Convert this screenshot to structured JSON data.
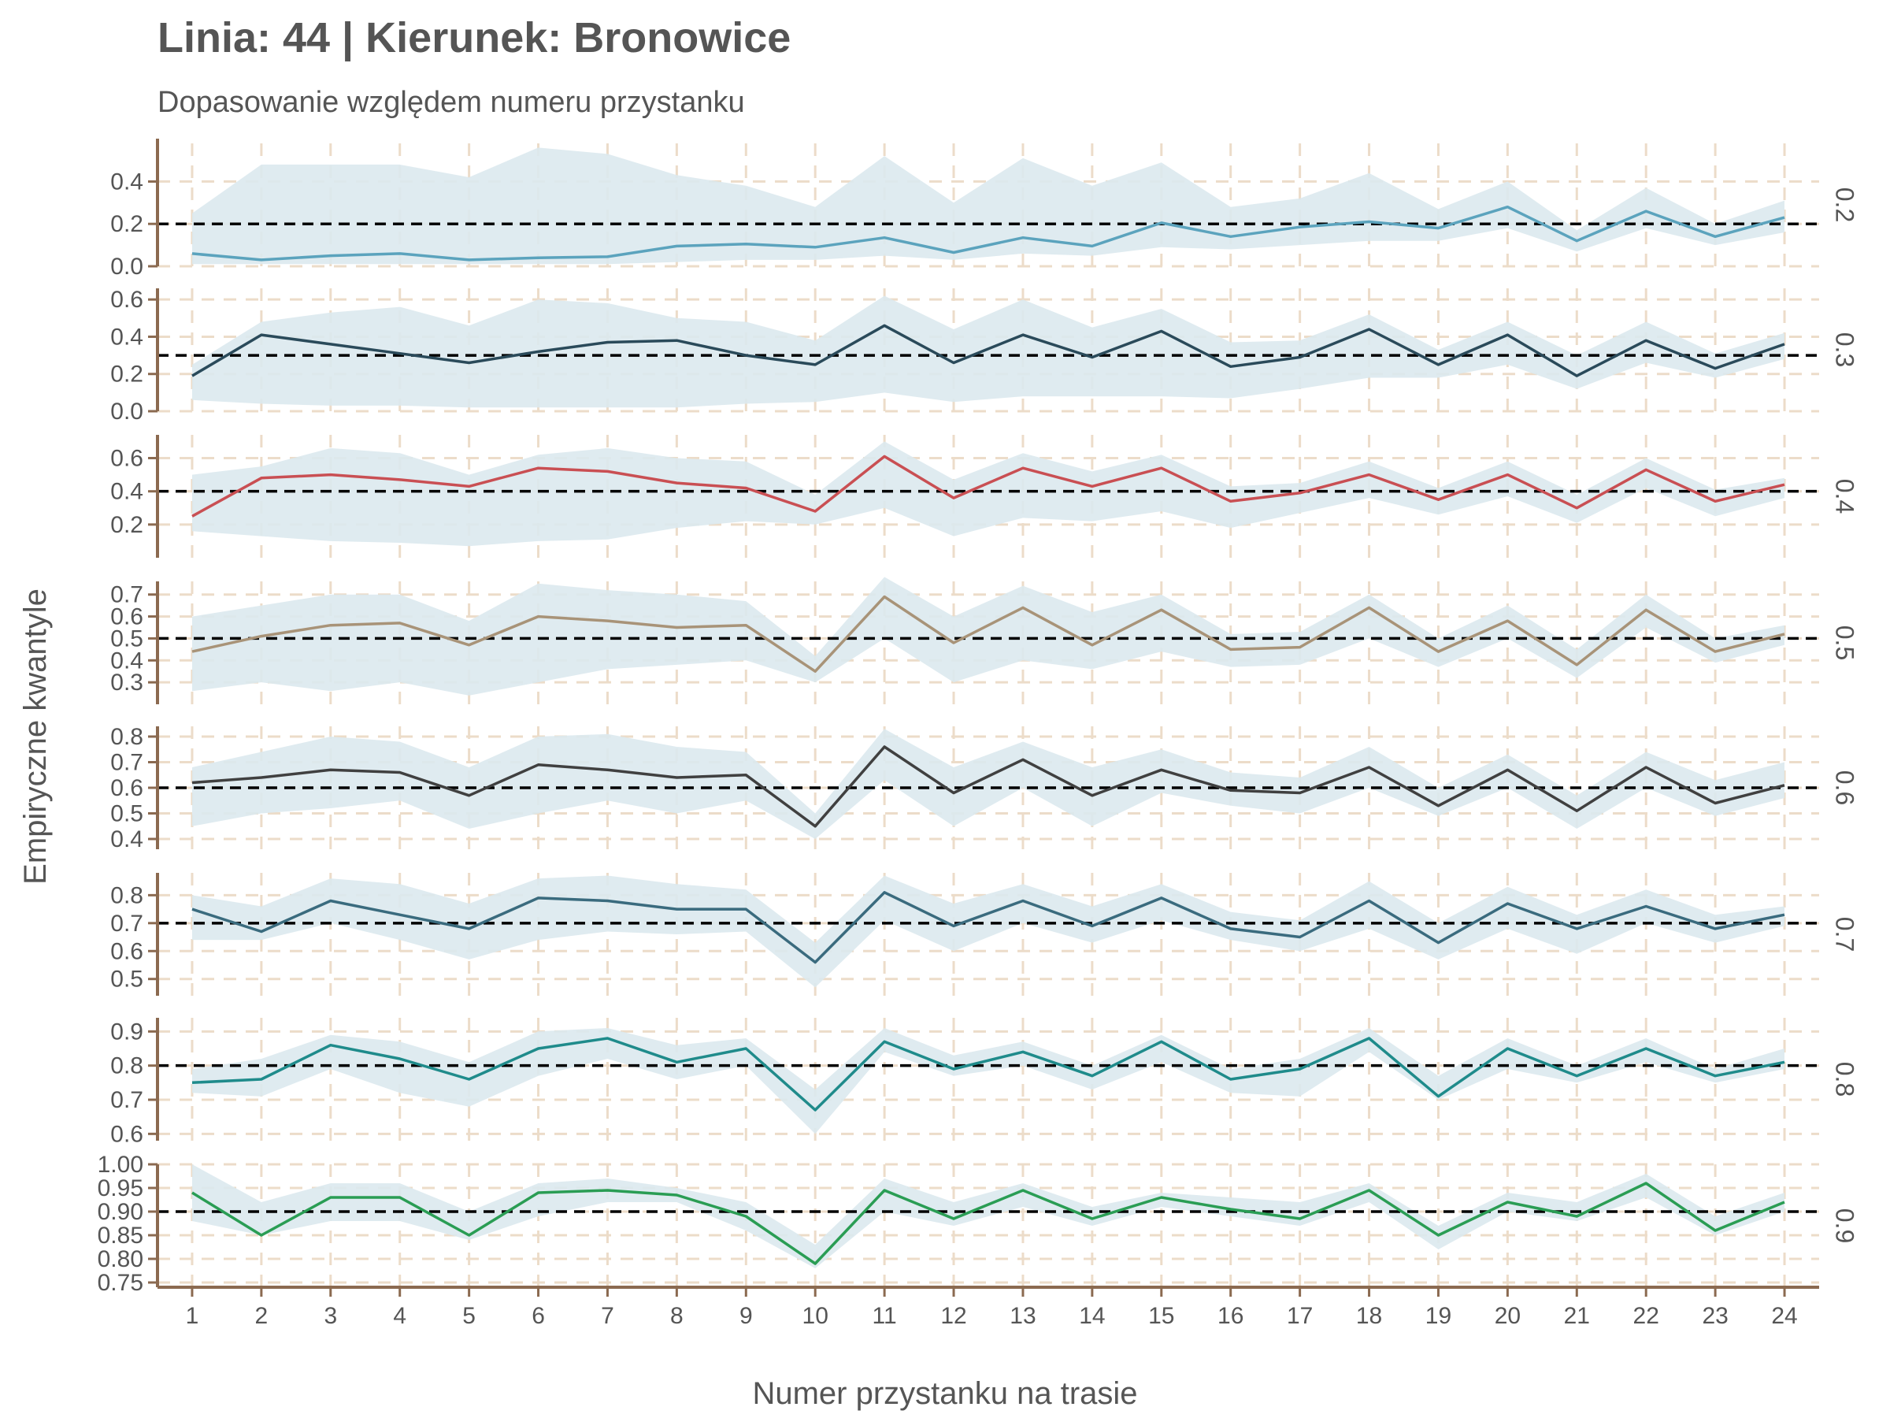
{
  "chart_data": {
    "type": "line",
    "title": "Linia: 44 | Kierunek: Bronowice",
    "subtitle": "Dopasowanie względem numeru przystanku",
    "xlabel": "Numer przystanku na trasie",
    "ylabel": "Empiryczne kwantyle",
    "x": [
      1,
      2,
      3,
      4,
      5,
      6,
      7,
      8,
      9,
      10,
      11,
      12,
      13,
      14,
      15,
      16,
      17,
      18,
      19,
      20,
      21,
      22,
      23,
      24
    ],
    "xlim": [
      0.5,
      24.5
    ],
    "grid": true,
    "panels": [
      {
        "strip": "0.2",
        "reference": 0.2,
        "color": "#5ba3bd",
        "ylim": [
          0.0,
          0.58
        ],
        "yticks": [
          0.0,
          0.2,
          0.4
        ],
        "tick_labels": [
          "0.0",
          "0.2",
          "0.4"
        ],
        "values": [
          0.06,
          0.03,
          0.05,
          0.06,
          0.03,
          0.04,
          0.045,
          0.095,
          0.105,
          0.09,
          0.135,
          0.065,
          0.135,
          0.095,
          0.205,
          0.14,
          0.185,
          0.21,
          0.18,
          0.28,
          0.12,
          0.26,
          0.14,
          0.23
        ],
        "lower": [
          0.01,
          0.01,
          0.01,
          0.01,
          0.01,
          0.01,
          0.01,
          0.02,
          0.03,
          0.03,
          0.05,
          0.03,
          0.06,
          0.05,
          0.09,
          0.08,
          0.1,
          0.12,
          0.12,
          0.18,
          0.07,
          0.18,
          0.1,
          0.16
        ],
        "upper": [
          0.25,
          0.48,
          0.48,
          0.48,
          0.42,
          0.56,
          0.53,
          0.43,
          0.38,
          0.28,
          0.52,
          0.3,
          0.51,
          0.38,
          0.49,
          0.28,
          0.32,
          0.44,
          0.27,
          0.4,
          0.17,
          0.37,
          0.2,
          0.31
        ]
      },
      {
        "strip": "0.3",
        "reference": 0.3,
        "color": "#2a4a5a",
        "ylim": [
          0.0,
          0.66
        ],
        "yticks": [
          0.0,
          0.2,
          0.4,
          0.6
        ],
        "tick_labels": [
          "0.0",
          "0.2",
          "0.4",
          "0.6"
        ],
        "values": [
          0.19,
          0.41,
          0.36,
          0.31,
          0.26,
          0.32,
          0.37,
          0.38,
          0.3,
          0.25,
          0.46,
          0.26,
          0.41,
          0.29,
          0.43,
          0.24,
          0.29,
          0.44,
          0.25,
          0.41,
          0.19,
          0.38,
          0.23,
          0.36
        ],
        "lower": [
          0.06,
          0.04,
          0.03,
          0.03,
          0.02,
          0.02,
          0.02,
          0.02,
          0.04,
          0.05,
          0.1,
          0.05,
          0.08,
          0.08,
          0.08,
          0.07,
          0.12,
          0.18,
          0.18,
          0.25,
          0.12,
          0.26,
          0.18,
          0.28
        ],
        "upper": [
          0.25,
          0.48,
          0.53,
          0.56,
          0.46,
          0.6,
          0.58,
          0.5,
          0.48,
          0.38,
          0.62,
          0.44,
          0.6,
          0.45,
          0.55,
          0.37,
          0.38,
          0.52,
          0.33,
          0.48,
          0.3,
          0.48,
          0.31,
          0.42
        ]
      },
      {
        "strip": "0.4",
        "reference": 0.4,
        "color": "#c94f53",
        "ylim": [
          0.0,
          0.74
        ],
        "yticks": [
          0.2,
          0.4,
          0.6
        ],
        "tick_labels": [
          "0.2",
          "0.4",
          "0.6"
        ],
        "values": [
          0.25,
          0.48,
          0.5,
          0.47,
          0.43,
          0.54,
          0.52,
          0.45,
          0.42,
          0.28,
          0.61,
          0.36,
          0.54,
          0.43,
          0.54,
          0.34,
          0.39,
          0.5,
          0.35,
          0.5,
          0.3,
          0.53,
          0.34,
          0.44
        ],
        "lower": [
          0.16,
          0.13,
          0.1,
          0.09,
          0.07,
          0.1,
          0.11,
          0.18,
          0.22,
          0.2,
          0.3,
          0.13,
          0.24,
          0.22,
          0.28,
          0.18,
          0.27,
          0.36,
          0.26,
          0.37,
          0.21,
          0.42,
          0.25,
          0.36
        ],
        "upper": [
          0.5,
          0.55,
          0.66,
          0.63,
          0.5,
          0.62,
          0.66,
          0.6,
          0.58,
          0.38,
          0.7,
          0.47,
          0.63,
          0.52,
          0.62,
          0.43,
          0.45,
          0.58,
          0.42,
          0.58,
          0.38,
          0.6,
          0.41,
          0.48
        ]
      },
      {
        "strip": "0.5",
        "reference": 0.5,
        "color": "#a89378",
        "ylim": [
          0.2,
          0.76
        ],
        "yticks": [
          0.3,
          0.4,
          0.5,
          0.6,
          0.7
        ],
        "tick_labels": [
          "0.3",
          "0.4",
          "0.5",
          "0.6",
          "0.7"
        ],
        "values": [
          0.44,
          0.51,
          0.56,
          0.57,
          0.47,
          0.6,
          0.58,
          0.55,
          0.56,
          0.35,
          0.69,
          0.48,
          0.64,
          0.47,
          0.63,
          0.45,
          0.46,
          0.64,
          0.44,
          0.58,
          0.38,
          0.63,
          0.44,
          0.52
        ],
        "lower": [
          0.26,
          0.3,
          0.26,
          0.3,
          0.24,
          0.3,
          0.36,
          0.38,
          0.4,
          0.3,
          0.5,
          0.3,
          0.4,
          0.36,
          0.44,
          0.37,
          0.38,
          0.5,
          0.37,
          0.5,
          0.32,
          0.55,
          0.39,
          0.47
        ],
        "upper": [
          0.6,
          0.65,
          0.7,
          0.7,
          0.58,
          0.75,
          0.72,
          0.7,
          0.67,
          0.42,
          0.78,
          0.6,
          0.74,
          0.62,
          0.7,
          0.52,
          0.53,
          0.7,
          0.5,
          0.65,
          0.45,
          0.7,
          0.5,
          0.56
        ]
      },
      {
        "strip": "0.6",
        "reference": 0.6,
        "color": "#404040",
        "ylim": [
          0.36,
          0.84
        ],
        "yticks": [
          0.4,
          0.5,
          0.6,
          0.7,
          0.8
        ],
        "tick_labels": [
          "0.4",
          "0.5",
          "0.6",
          "0.7",
          "0.8"
        ],
        "values": [
          0.62,
          0.64,
          0.67,
          0.66,
          0.57,
          0.69,
          0.67,
          0.64,
          0.65,
          0.45,
          0.76,
          0.58,
          0.71,
          0.57,
          0.67,
          0.59,
          0.58,
          0.68,
          0.53,
          0.67,
          0.51,
          0.68,
          0.54,
          0.61
        ],
        "lower": [
          0.45,
          0.5,
          0.52,
          0.55,
          0.44,
          0.5,
          0.55,
          0.5,
          0.55,
          0.4,
          0.63,
          0.45,
          0.6,
          0.45,
          0.58,
          0.53,
          0.5,
          0.6,
          0.49,
          0.6,
          0.44,
          0.6,
          0.49,
          0.56
        ],
        "upper": [
          0.68,
          0.74,
          0.8,
          0.78,
          0.68,
          0.8,
          0.81,
          0.76,
          0.74,
          0.5,
          0.83,
          0.68,
          0.78,
          0.68,
          0.75,
          0.66,
          0.64,
          0.76,
          0.6,
          0.73,
          0.57,
          0.74,
          0.63,
          0.7
        ]
      },
      {
        "strip": "0.7",
        "reference": 0.7,
        "color": "#3a6b7e",
        "ylim": [
          0.44,
          0.88
        ],
        "yticks": [
          0.5,
          0.6,
          0.7,
          0.8
        ],
        "tick_labels": [
          "0.5",
          "0.6",
          "0.7",
          "0.8"
        ],
        "values": [
          0.75,
          0.67,
          0.78,
          0.73,
          0.68,
          0.79,
          0.78,
          0.75,
          0.75,
          0.56,
          0.81,
          0.69,
          0.78,
          0.69,
          0.79,
          0.68,
          0.65,
          0.78,
          0.63,
          0.77,
          0.68,
          0.76,
          0.68,
          0.73
        ],
        "lower": [
          0.64,
          0.64,
          0.7,
          0.64,
          0.57,
          0.64,
          0.67,
          0.66,
          0.67,
          0.47,
          0.71,
          0.6,
          0.7,
          0.63,
          0.71,
          0.64,
          0.6,
          0.68,
          0.57,
          0.68,
          0.59,
          0.7,
          0.63,
          0.69
        ],
        "upper": [
          0.8,
          0.76,
          0.86,
          0.84,
          0.77,
          0.86,
          0.87,
          0.84,
          0.82,
          0.63,
          0.87,
          0.77,
          0.84,
          0.76,
          0.84,
          0.74,
          0.71,
          0.85,
          0.7,
          0.83,
          0.73,
          0.82,
          0.73,
          0.76
        ]
      },
      {
        "strip": "0.8",
        "reference": 0.8,
        "color": "#1f8b8b",
        "ylim": [
          0.58,
          0.94
        ],
        "yticks": [
          0.6,
          0.7,
          0.8,
          0.9
        ],
        "tick_labels": [
          "0.6",
          "0.7",
          "0.8",
          "0.9"
        ],
        "values": [
          0.75,
          0.76,
          0.86,
          0.82,
          0.76,
          0.85,
          0.88,
          0.81,
          0.85,
          0.67,
          0.87,
          0.79,
          0.84,
          0.77,
          0.87,
          0.76,
          0.79,
          0.88,
          0.71,
          0.85,
          0.77,
          0.85,
          0.77,
          0.81
        ],
        "lower": [
          0.72,
          0.71,
          0.79,
          0.72,
          0.68,
          0.77,
          0.82,
          0.76,
          0.8,
          0.6,
          0.84,
          0.77,
          0.8,
          0.73,
          0.81,
          0.72,
          0.71,
          0.84,
          0.7,
          0.79,
          0.75,
          0.81,
          0.75,
          0.79
        ],
        "upper": [
          0.79,
          0.82,
          0.89,
          0.87,
          0.81,
          0.9,
          0.91,
          0.86,
          0.88,
          0.73,
          0.91,
          0.83,
          0.87,
          0.8,
          0.89,
          0.79,
          0.82,
          0.91,
          0.77,
          0.88,
          0.8,
          0.88,
          0.79,
          0.85
        ]
      },
      {
        "strip": "0.9",
        "reference": 0.9,
        "color": "#2a9d54",
        "ylim": [
          0.74,
          1.0
        ],
        "yticks": [
          0.75,
          0.8,
          0.85,
          0.9,
          0.95,
          1.0
        ],
        "tick_labels": [
          "0.75",
          "0.80",
          "0.85",
          "0.90",
          "0.95",
          "1.00"
        ],
        "values": [
          0.94,
          0.85,
          0.93,
          0.93,
          0.85,
          0.94,
          0.945,
          0.935,
          0.89,
          0.79,
          0.945,
          0.885,
          0.945,
          0.885,
          0.93,
          0.905,
          0.885,
          0.945,
          0.85,
          0.92,
          0.89,
          0.96,
          0.86,
          0.92
        ],
        "lower": [
          0.88,
          0.85,
          0.88,
          0.88,
          0.84,
          0.89,
          0.92,
          0.92,
          0.86,
          0.78,
          0.9,
          0.87,
          0.91,
          0.87,
          0.91,
          0.89,
          0.87,
          0.92,
          0.82,
          0.9,
          0.88,
          0.93,
          0.85,
          0.9
        ],
        "upper": [
          1.0,
          0.92,
          0.96,
          0.96,
          0.9,
          0.96,
          0.97,
          0.95,
          0.92,
          0.83,
          0.97,
          0.92,
          0.96,
          0.91,
          0.94,
          0.93,
          0.92,
          0.96,
          0.87,
          0.94,
          0.92,
          0.98,
          0.89,
          0.94
        ]
      }
    ]
  },
  "colors": {
    "band": "#dce9ee",
    "grid": "#ecdcc9",
    "axis": "#8b6a50",
    "text": "#555555",
    "reference_line": "#000000"
  }
}
